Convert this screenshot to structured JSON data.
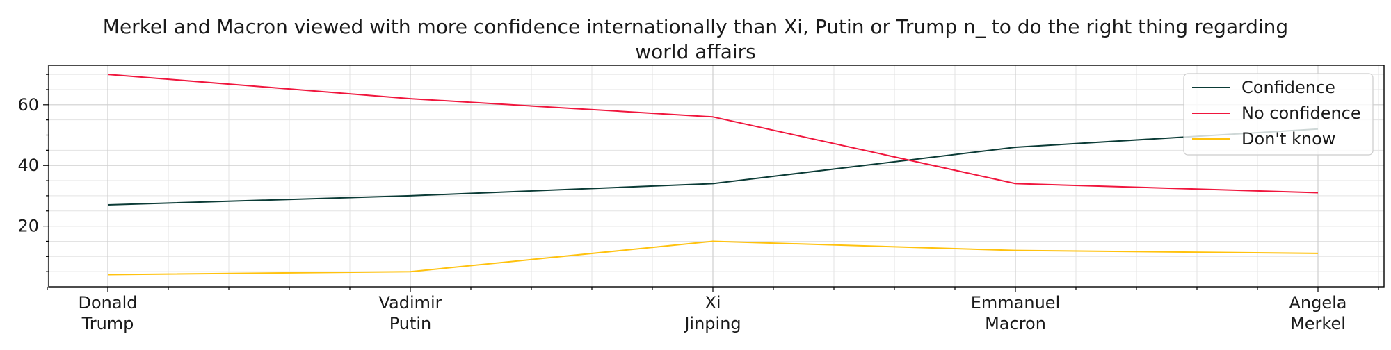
{
  "chart_data": {
    "type": "line",
    "title": "Merkel and Macron viewed with more confidence internationally than Xi, Putin or Trump n_ to do the right thing regarding world affairs",
    "title_lines": [
      "Merkel and Macron viewed with more confidence internationally than Xi, Putin or Trump n_ to do the right thing regarding",
      "world affairs"
    ],
    "categories": [
      [
        "Donald",
        "Trump"
      ],
      [
        "Vadimir",
        "Putin"
      ],
      [
        "Xi",
        "Jinping"
      ],
      [
        "Emmanuel",
        "Macron"
      ],
      [
        "Angela",
        "Merkel"
      ]
    ],
    "series": [
      {
        "name": "Confidence",
        "values": [
          27,
          30,
          34,
          46,
          52
        ],
        "color": "#0b3b36"
      },
      {
        "name": "No confidence",
        "values": [
          70,
          62,
          56,
          34,
          31
        ],
        "color": "#f0163d"
      },
      {
        "name": "Don't know",
        "values": [
          4,
          5,
          15,
          12,
          11
        ],
        "color": "#ffc20e"
      }
    ],
    "ylim": [
      0,
      73
    ],
    "yticks": [
      20,
      40,
      60
    ],
    "grid": true,
    "legend_position": "top-right",
    "xlabel": "",
    "ylabel": ""
  }
}
